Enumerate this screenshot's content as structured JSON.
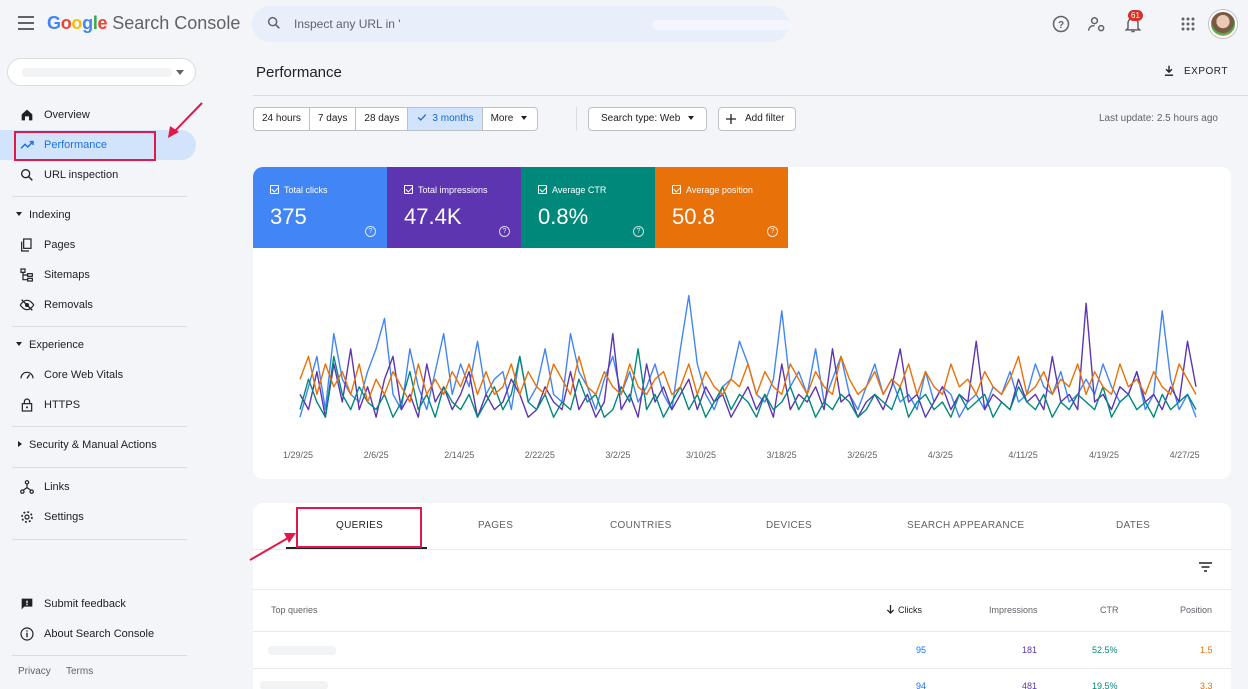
{
  "app": {
    "logo_google": [
      "G",
      "o",
      "o",
      "g",
      "l",
      "e"
    ],
    "logo_product": "Search Console",
    "search_placeholder": "Inspect any URL in '",
    "notification_count": "61"
  },
  "sidebar": {
    "items": [
      {
        "label": "Overview",
        "icon": "home-icon"
      },
      {
        "label": "Performance",
        "icon": "trending-up-icon",
        "active": true
      },
      {
        "label": "URL inspection",
        "icon": "search-icon"
      }
    ],
    "indexing": {
      "label": "Indexing",
      "items": [
        {
          "label": "Pages",
          "icon": "pages-icon"
        },
        {
          "label": "Sitemaps",
          "icon": "sitemap-icon"
        },
        {
          "label": "Removals",
          "icon": "eye-off-icon"
        }
      ]
    },
    "experience": {
      "label": "Experience",
      "items": [
        {
          "label": "Core Web Vitals",
          "icon": "speed-icon"
        },
        {
          "label": "HTTPS",
          "icon": "lock-icon"
        }
      ]
    },
    "security": {
      "label": "Security & Manual Actions"
    },
    "other": [
      {
        "label": "Links",
        "icon": "links-icon"
      },
      {
        "label": "Settings",
        "icon": "gear-icon"
      }
    ],
    "bottom": [
      {
        "label": "Submit feedback",
        "icon": "feedback-icon"
      },
      {
        "label": "About Search Console",
        "icon": "info-icon"
      }
    ],
    "footer": {
      "privacy": "Privacy",
      "terms": "Terms"
    }
  },
  "header": {
    "title": "Performance",
    "export_label": "EXPORT"
  },
  "filters": {
    "dates": [
      "24 hours",
      "7 days",
      "28 days",
      "3 months",
      "More"
    ],
    "selected_date": "3 months",
    "search_type": "Search type: Web",
    "add_filter": "Add filter",
    "last_update": "Last update: 2.5 hours ago"
  },
  "metrics": [
    {
      "label": "Total clicks",
      "value": "375",
      "color": "#4285f4"
    },
    {
      "label": "Total impressions",
      "value": "47.4K",
      "color": "#5e35b1"
    },
    {
      "label": "Average CTR",
      "value": "0.8%",
      "color": "#00897b"
    },
    {
      "label": "Average position",
      "value": "50.8",
      "color": "#e8710a"
    }
  ],
  "chart_data": {
    "type": "line",
    "x_tick_labels": [
      "1/29/25",
      "2/6/25",
      "2/14/25",
      "2/22/25",
      "3/2/25",
      "3/10/25",
      "3/18/25",
      "3/26/25",
      "4/3/25",
      "4/11/25",
      "4/19/25",
      "4/27/25"
    ],
    "series": [
      {
        "name": "Total clicks",
        "color": "#4285f4",
        "values": [
          0.15,
          0.35,
          0.55,
          0.2,
          0.7,
          0.4,
          0.3,
          0.25,
          0.45,
          0.6,
          0.8,
          0.3,
          0.2,
          0.6,
          0.35,
          0.2,
          0.45,
          0.7,
          0.3,
          0.5,
          0.35,
          0.65,
          0.3,
          0.4,
          0.45,
          0.2,
          0.55,
          0.25,
          0.35,
          0.6,
          0.3,
          0.25,
          0.7,
          0.45,
          0.35,
          0.2,
          0.4,
          0.55,
          0.3,
          0.45,
          0.25,
          0.35,
          0.5,
          0.3,
          0.2,
          0.6,
          0.95,
          0.5,
          0.3,
          0.2,
          0.35,
          0.4,
          0.65,
          0.5,
          0.3,
          0.25,
          0.4,
          0.85,
          0.35,
          0.45,
          0.3,
          0.6,
          0.25,
          0.4,
          0.55,
          0.3,
          0.2,
          0.35,
          0.5,
          0.3,
          0.4,
          0.25,
          0.3,
          0.2,
          0.45,
          0.25,
          0.35,
          0.3,
          0.15,
          0.25,
          0.3,
          0.2,
          0.35,
          0.3,
          0.45,
          0.25,
          0.3,
          0.5,
          0.35,
          0.3,
          0.45,
          0.25,
          0.3,
          0.4,
          0.3,
          0.5,
          0.35,
          0.25,
          0.3,
          0.45,
          0.2,
          0.3,
          0.85,
          0.4,
          0.2,
          0.3,
          0.15
        ]
      },
      {
        "name": "Total impressions",
        "color": "#5e35b1",
        "values": [
          0.3,
          0.2,
          0.45,
          0.15,
          0.5,
          0.25,
          0.6,
          0.2,
          0.35,
          0.15,
          0.4,
          0.55,
          0.2,
          0.3,
          0.15,
          0.5,
          0.25,
          0.35,
          0.2,
          0.3,
          0.45,
          0.15,
          0.3,
          0.2,
          0.25,
          0.4,
          0.3,
          0.15,
          0.2,
          0.35,
          0.25,
          0.2,
          0.45,
          0.2,
          0.3,
          0.15,
          0.25,
          0.7,
          0.2,
          0.3,
          0.15,
          0.5,
          0.25,
          0.35,
          0.2,
          0.3,
          0.4,
          0.2,
          0.35,
          0.25,
          0.3,
          0.15,
          0.25,
          0.35,
          0.2,
          0.3,
          0.15,
          0.5,
          0.2,
          0.3,
          0.25,
          0.35,
          0.2,
          0.6,
          0.25,
          0.3,
          0.15,
          0.25,
          0.3,
          0.2,
          0.35,
          0.6,
          0.25,
          0.3,
          0.15,
          0.25,
          0.35,
          0.2,
          0.3,
          0.25,
          0.65,
          0.2,
          0.3,
          0.25,
          0.2,
          0.4,
          0.25,
          0.3,
          0.2,
          0.55,
          0.25,
          0.3,
          0.2,
          0.9,
          0.25,
          0.3,
          0.2,
          0.35,
          0.3,
          0.45,
          0.25,
          0.3,
          0.2,
          0.35,
          0.25,
          0.65,
          0.35
        ]
      },
      {
        "name": "Average CTR",
        "color": "#00897b",
        "values": [
          0.2,
          0.4,
          0.25,
          0.15,
          0.55,
          0.3,
          0.2,
          0.35,
          0.25,
          0.2,
          0.3,
          0.15,
          0.25,
          0.45,
          0.2,
          0.3,
          0.15,
          0.35,
          0.25,
          0.2,
          0.3,
          0.15,
          0.25,
          0.35,
          0.2,
          0.3,
          0.55,
          0.25,
          0.2,
          0.3,
          0.15,
          0.25,
          0.2,
          0.4,
          0.25,
          0.3,
          0.15,
          0.2,
          0.35,
          0.25,
          0.6,
          0.2,
          0.3,
          0.15,
          0.25,
          0.35,
          0.2,
          0.3,
          0.15,
          0.25,
          0.35,
          0.2,
          0.3,
          0.25,
          0.15,
          0.3,
          0.2,
          0.25,
          0.35,
          0.2,
          0.3,
          0.15,
          0.25,
          0.2,
          0.3,
          0.25,
          0.15,
          0.2,
          0.3,
          0.25,
          0.2,
          0.35,
          0.15,
          0.25,
          0.3,
          0.2,
          0.25,
          0.15,
          0.3,
          0.2,
          0.25,
          0.3,
          0.15,
          0.25,
          0.2,
          0.35,
          0.25,
          0.2,
          0.3,
          0.15,
          0.25,
          0.2,
          0.3,
          0.25,
          0.2,
          0.35,
          0.15,
          0.25,
          0.3,
          0.2,
          0.25,
          0.15,
          0.3,
          0.2,
          0.25,
          0.3,
          0.2
        ]
      },
      {
        "name": "Average position",
        "color": "#e8710a",
        "values": [
          0.4,
          0.55,
          0.3,
          0.5,
          0.35,
          0.45,
          0.3,
          0.5,
          0.25,
          0.4,
          0.3,
          0.45,
          0.35,
          0.25,
          0.5,
          0.3,
          0.4,
          0.3,
          0.45,
          0.35,
          0.5,
          0.3,
          0.45,
          0.3,
          0.35,
          0.5,
          0.3,
          0.45,
          0.35,
          0.3,
          0.5,
          0.4,
          0.3,
          0.55,
          0.35,
          0.3,
          0.45,
          0.35,
          0.3,
          0.5,
          0.35,
          0.3,
          0.4,
          0.45,
          0.3,
          0.35,
          0.5,
          0.3,
          0.45,
          0.35,
          0.3,
          0.4,
          0.35,
          0.5,
          0.3,
          0.45,
          0.35,
          0.3,
          0.5,
          0.4,
          0.3,
          0.45,
          0.35,
          0.3,
          0.55,
          0.4,
          0.3,
          0.35,
          0.45,
          0.3,
          0.4,
          0.35,
          0.5,
          0.3,
          0.45,
          0.35,
          0.3,
          0.5,
          0.35,
          0.4,
          0.3,
          0.45,
          0.35,
          0.3,
          0.4,
          0.55,
          0.3,
          0.35,
          0.45,
          0.3,
          0.4,
          0.35,
          0.5,
          0.3,
          0.45,
          0.35,
          0.3,
          0.5,
          0.35,
          0.4,
          0.3,
          0.45,
          0.35,
          0.3,
          0.5,
          0.4,
          0.3
        ]
      }
    ],
    "grid": false,
    "legend": "none"
  },
  "tabs": [
    "QUERIES",
    "PAGES",
    "COUNTRIES",
    "DEVICES",
    "SEARCH APPEARANCE",
    "DATES"
  ],
  "table": {
    "columns": [
      "Top queries",
      "Clicks",
      "Impressions",
      "CTR",
      "Position"
    ],
    "rows": [
      {
        "clicks": "95",
        "impressions": "181",
        "ctr": "52.5%",
        "position": "1.5"
      },
      {
        "clicks": "94",
        "impressions": "481",
        "ctr": "19.5%",
        "position": "3.3"
      }
    ]
  }
}
